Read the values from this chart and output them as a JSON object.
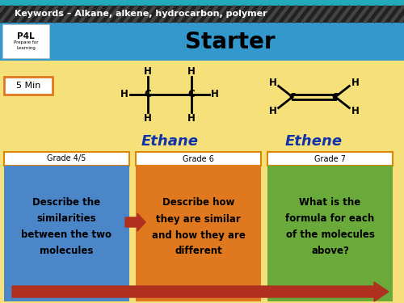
{
  "title": "Starter",
  "keywords": "Keywords – Alkane, alkene, hydrocarbon, polymer",
  "timer": "5 Min",
  "ethane_label": "Ethane",
  "ethene_label": "Ethene",
  "bg_color": "#f5e07a",
  "header_dark": "#222222",
  "header_blue": "#3399cc",
  "box1_header": "Grade 4/5",
  "box2_header": "Grade 6",
  "box3_header": "Grade 7",
  "box1_color": "#4a86c8",
  "box2_color": "#e07820",
  "box3_color": "#6aaa3a",
  "box1_text": "Describe the\nsimilarities\nbetween the two\nmolecules",
  "box2_text": "Describe how\nthey are similar\nand how they are\ndifferent",
  "box3_text": "What is the\nformula for each\nof the molecules\nabove?",
  "arrow_color": "#b03020",
  "timer_border": "#e07820",
  "teal_color": "#22aabb",
  "p4l_border": "#cccccc"
}
